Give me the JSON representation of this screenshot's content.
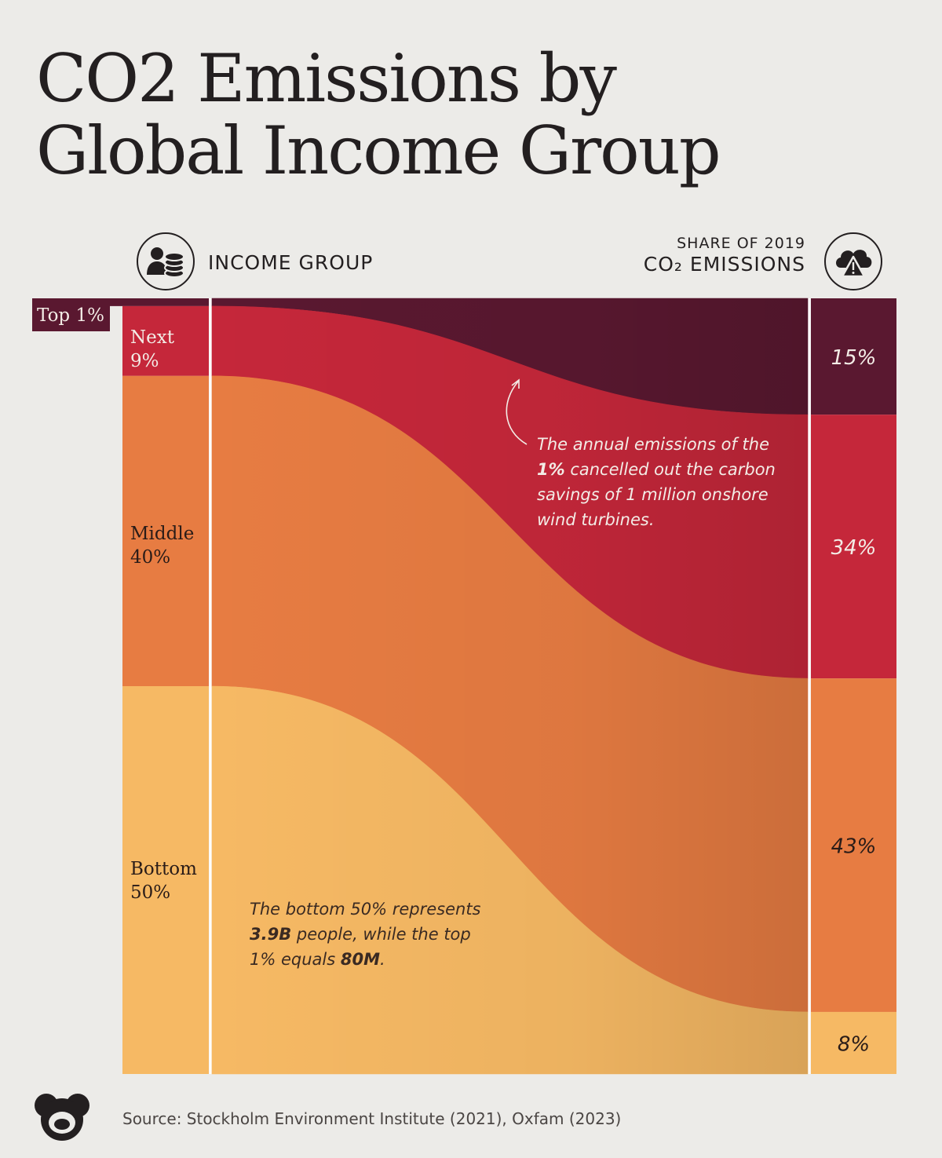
{
  "title": {
    "line1": "CO2 Emissions by",
    "line2": "Global Income Group"
  },
  "headers": {
    "income_group": "INCOME GROUP",
    "share_line1": "SHARE OF 2019",
    "share_line2": "CO₂ EMISSIONS"
  },
  "icons": {
    "left": "people-coins-icon",
    "right": "cloud-warning-icon",
    "logo": "visual-capitalist-logo-icon"
  },
  "colors": {
    "top1": "#5a1830",
    "next9": "#c5273a",
    "middle40": "#e77c42",
    "bottom50": "#f6b964"
  },
  "source": "Source:  Stockholm Environment Institute (2021), Oxfam (2023)",
  "chart_data": {
    "type": "sankey",
    "title": "CO2 Emissions by Global Income Group",
    "left_axis_label": "INCOME GROUP",
    "right_axis_label": "SHARE OF 2019 CO₂ EMISSIONS",
    "groups": [
      {
        "label": "Top 1%",
        "population_share": 1,
        "emissions_share": 15,
        "emissions_label": "15%",
        "color": "#5a1830"
      },
      {
        "label_line1": "Next",
        "label_line2": "9%",
        "population_share": 9,
        "emissions_share": 34,
        "emissions_label": "34%",
        "color": "#c5273a"
      },
      {
        "label_line1": "Middle",
        "label_line2": "40%",
        "population_share": 40,
        "emissions_share": 43,
        "emissions_label": "43%",
        "color": "#e77c42"
      },
      {
        "label_line1": "Bottom",
        "label_line2": "50%",
        "population_share": 50,
        "emissions_share": 8,
        "emissions_label": "8%",
        "color": "#f6b964"
      }
    ],
    "annotations": [
      {
        "id": "top1",
        "lines": [
          [
            {
              "text": "The annual emissions of the",
              "bold": false
            }
          ],
          [
            {
              "text": "1%",
              "bold": true
            },
            {
              "text": " cancelled out the carbon",
              "bold": false
            }
          ],
          [
            {
              "text": "savings of 1 million onshore",
              "bold": false
            }
          ],
          [
            {
              "text": "wind turbines.",
              "bold": false
            }
          ]
        ]
      },
      {
        "id": "bottom50",
        "lines": [
          [
            {
              "text": "The bottom 50% represents",
              "bold": false
            }
          ],
          [
            {
              "text": "3.9B",
              "bold": true
            },
            {
              "text": " people, while the top",
              "bold": false
            }
          ],
          [
            {
              "text": "1% equals ",
              "bold": false
            },
            {
              "text": "80M",
              "bold": true
            },
            {
              "text": ".",
              "bold": false
            }
          ]
        ]
      }
    ]
  }
}
